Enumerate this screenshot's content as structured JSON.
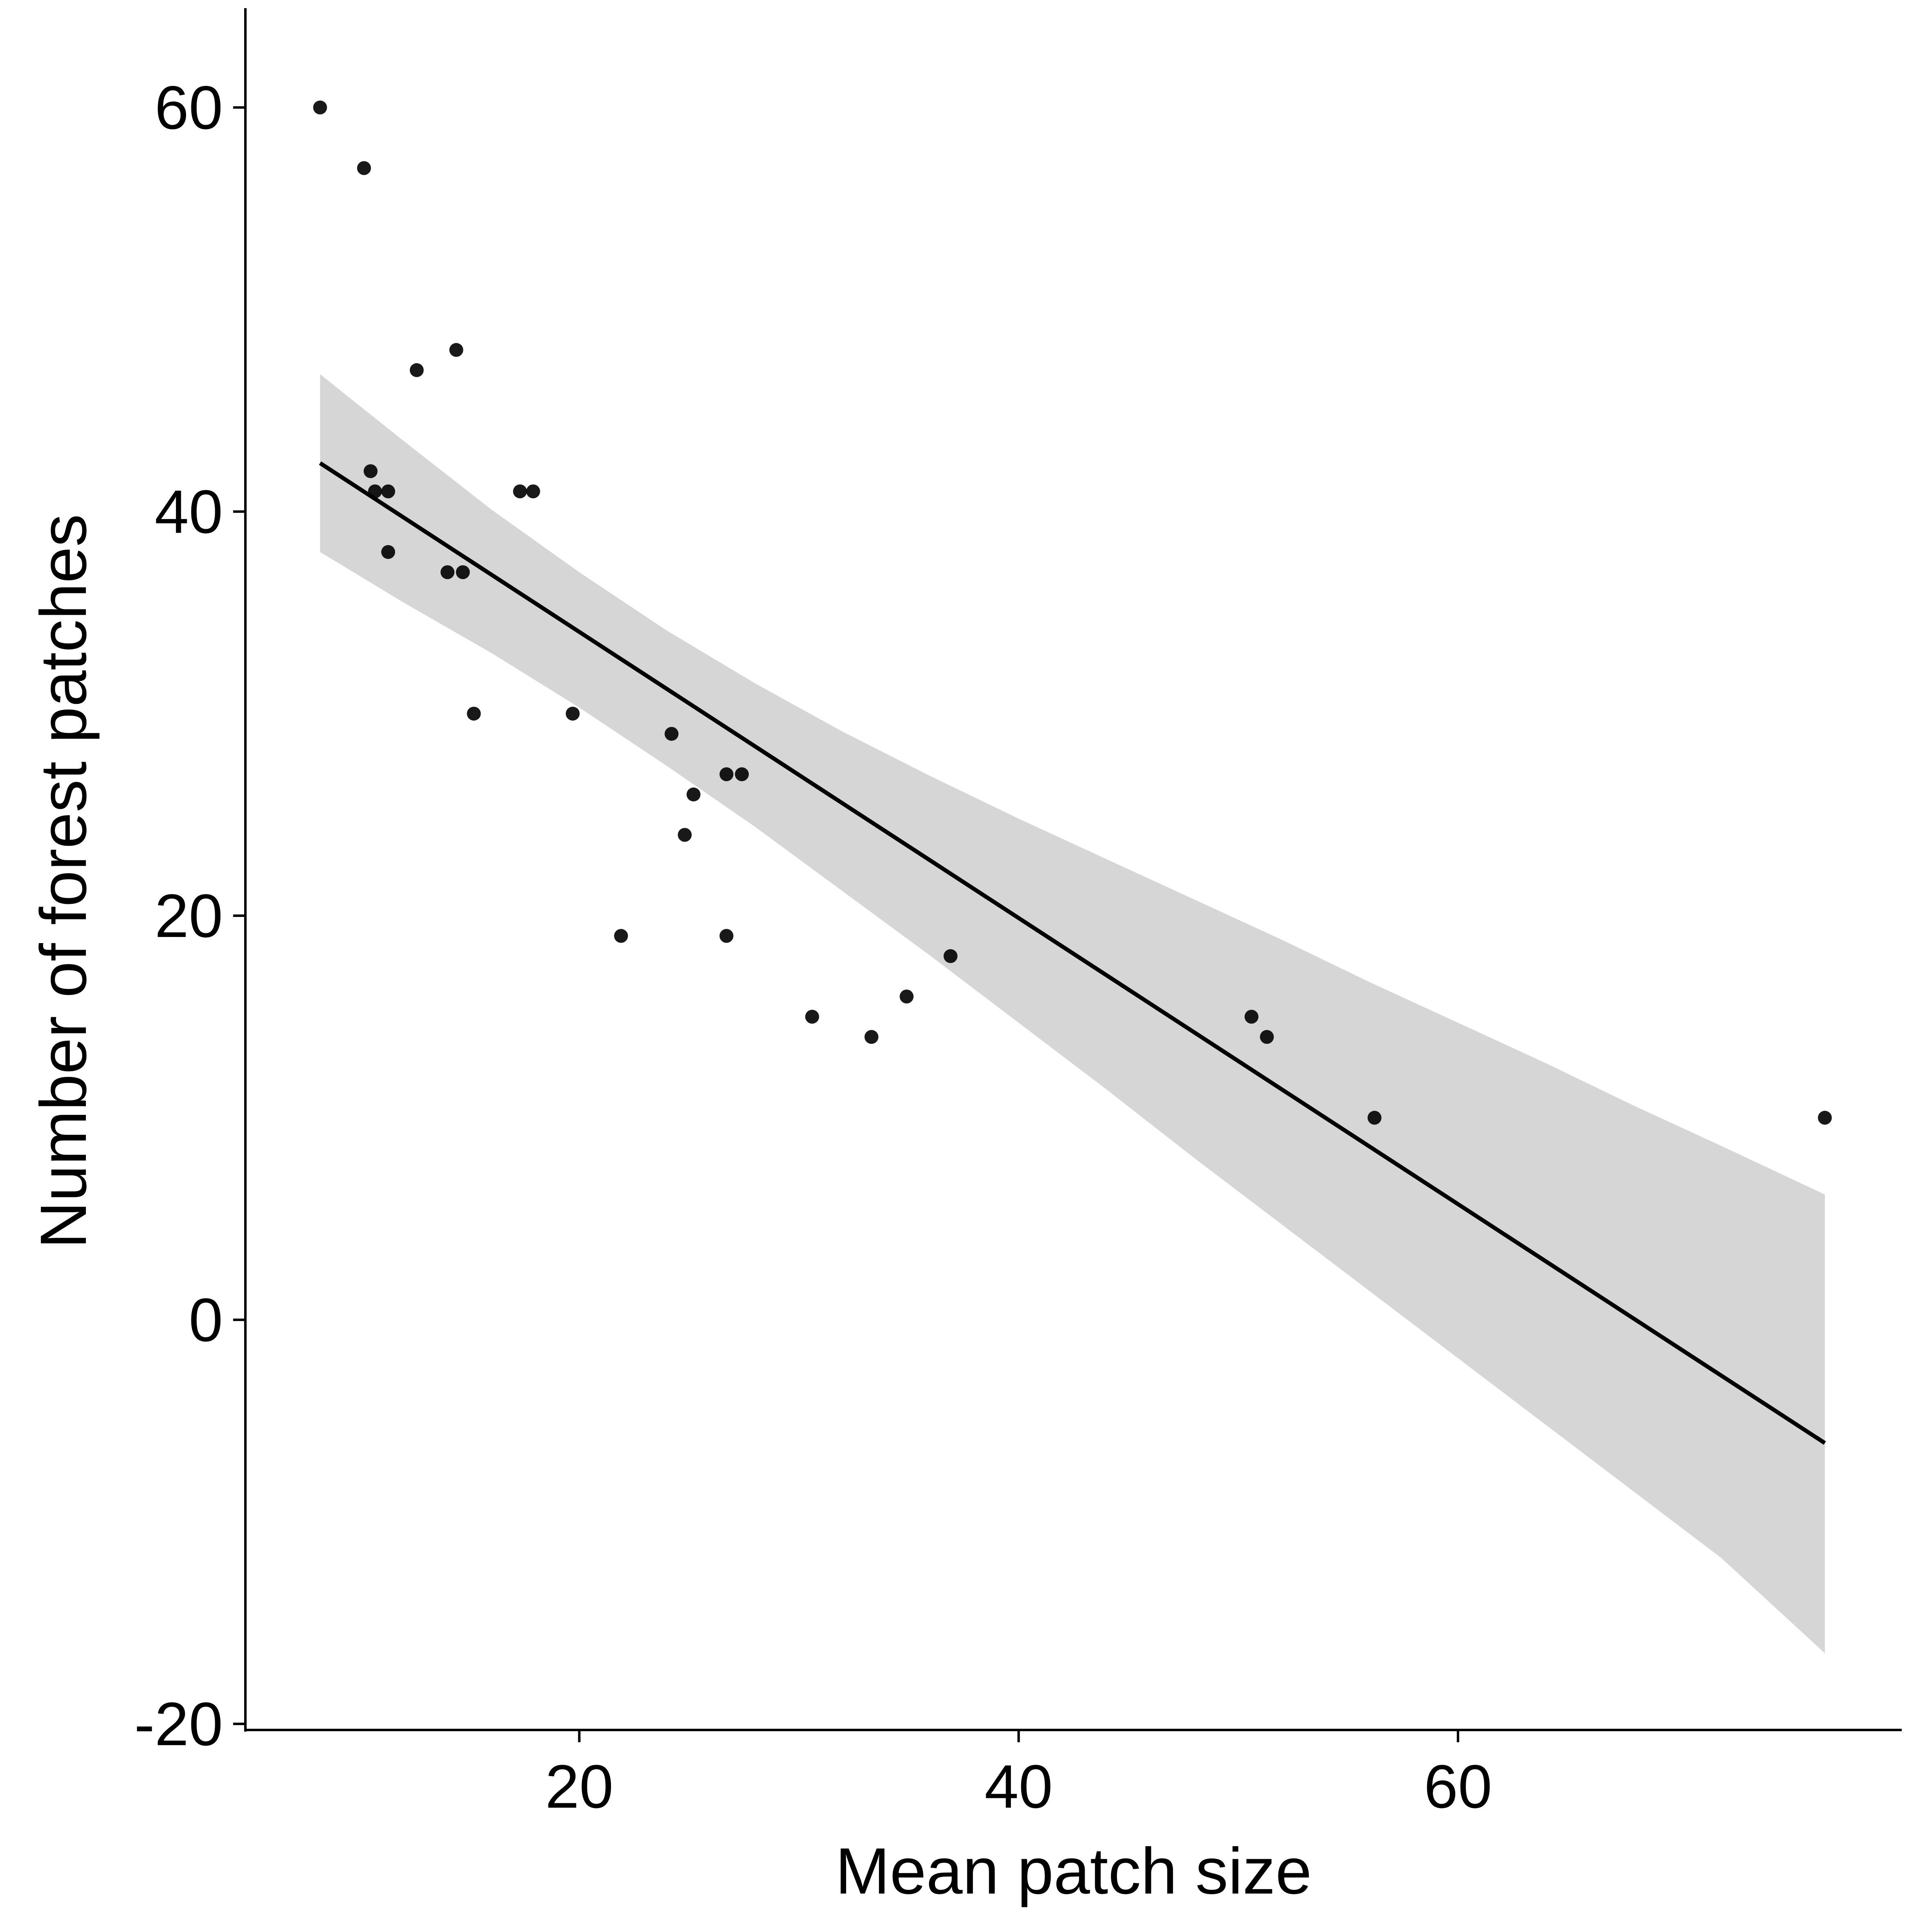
{
  "chart_data": {
    "type": "scatter",
    "title": "",
    "xlabel": "Mean patch size",
    "ylabel": "Number of forest patches",
    "xlim": [
      4.8,
      80.2
    ],
    "ylim": [
      -20.3,
      63.7
    ],
    "xticks": [
      20,
      40,
      60
    ],
    "yticks": [
      -20,
      0,
      20,
      40,
      60
    ],
    "xtick_labels": [
      "20",
      "40",
      "60"
    ],
    "ytick_labels": [
      "-20",
      "0",
      "20",
      "40",
      "60"
    ],
    "grid": false,
    "legend": "none",
    "point_color": "#000000",
    "line_color": "#000000",
    "band_color": "#d6d6d6",
    "points": [
      {
        "x": 8.2,
        "y": 60
      },
      {
        "x": 10.2,
        "y": 57
      },
      {
        "x": 10.5,
        "y": 42
      },
      {
        "x": 10.7,
        "y": 41
      },
      {
        "x": 11.3,
        "y": 41
      },
      {
        "x": 11.3,
        "y": 38
      },
      {
        "x": 12.6,
        "y": 47
      },
      {
        "x": 14.0,
        "y": 37
      },
      {
        "x": 14.4,
        "y": 48
      },
      {
        "x": 14.7,
        "y": 37
      },
      {
        "x": 15.2,
        "y": 30
      },
      {
        "x": 17.3,
        "y": 41
      },
      {
        "x": 17.9,
        "y": 41
      },
      {
        "x": 19.7,
        "y": 30
      },
      {
        "x": 21.9,
        "y": 19
      },
      {
        "x": 24.2,
        "y": 29
      },
      {
        "x": 24.8,
        "y": 24
      },
      {
        "x": 25.2,
        "y": 26
      },
      {
        "x": 26.7,
        "y": 27
      },
      {
        "x": 26.7,
        "y": 19
      },
      {
        "x": 27.4,
        "y": 27
      },
      {
        "x": 30.6,
        "y": 15
      },
      {
        "x": 33.3,
        "y": 14
      },
      {
        "x": 34.9,
        "y": 16
      },
      {
        "x": 36.9,
        "y": 18
      },
      {
        "x": 50.6,
        "y": 15
      },
      {
        "x": 51.3,
        "y": 14
      },
      {
        "x": 56.2,
        "y": 10
      },
      {
        "x": 76.7,
        "y": 10
      }
    ],
    "fit": {
      "method": "linear",
      "x": [
        8.2,
        76.7
      ],
      "y": [
        42.4,
        -6.1
      ]
    },
    "confidence_band": {
      "x": [
        8.2,
        12,
        16,
        20,
        24,
        28,
        32,
        36,
        40,
        44,
        48,
        52,
        56,
        60,
        64,
        68,
        72,
        76.7
      ],
      "upper": [
        46.8,
        43.5,
        40.1,
        37.0,
        34.1,
        31.5,
        29.1,
        26.9,
        24.8,
        22.8,
        20.8,
        18.8,
        16.7,
        14.7,
        12.7,
        10.6,
        8.6,
        6.2
      ],
      "lower": [
        38.0,
        35.5,
        33.0,
        30.3,
        27.4,
        24.4,
        21.2,
        18.0,
        14.7,
        11.4,
        8.0,
        4.7,
        1.4,
        -1.9,
        -5.2,
        -8.5,
        -11.8,
        -16.5
      ]
    }
  }
}
